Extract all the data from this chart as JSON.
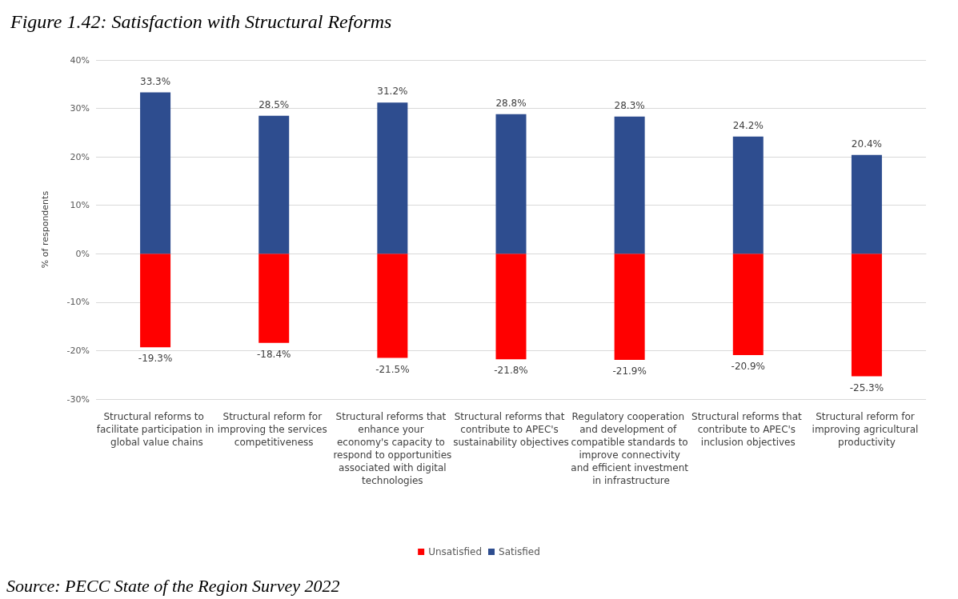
{
  "chart_data": {
    "type": "bar",
    "title": "Figure 1.42: Satisfaction with Structural Reforms",
    "ylabel": "% of respondents",
    "categories": [
      "Structural reforms to facilitate participation in global value chains",
      "Structural reform for improving the services competitiveness",
      "Structural reforms that enhance your economy's capacity to respond to opportunities associated with digital technologies",
      "Structural reforms that contribute to APEC's sustainability objectives",
      "Regulatory cooperation and development of compatible standards to improve connectivity and efficient investment in infrastructure",
      "Structural reforms that contribute to APEC's inclusion objectives",
      "Structural reform for improving agricultural productivity"
    ],
    "series": [
      {
        "name": "Unsatisfied",
        "color": "#ff0000",
        "values": [
          -19.3,
          -18.4,
          -21.5,
          -21.8,
          -21.9,
          -20.9,
          -25.3
        ],
        "value_labels": [
          "-19.3%",
          "-18.4%",
          "-21.5%",
          "-21.8%",
          "-21.9%",
          "-20.9%",
          "-25.3%"
        ]
      },
      {
        "name": "Satisfied",
        "color": "#2e4d8f",
        "values": [
          33.3,
          28.5,
          31.2,
          28.8,
          28.3,
          24.2,
          20.4
        ],
        "value_labels": [
          "33.3%",
          "28.5%",
          "31.2%",
          "28.8%",
          "28.3%",
          "24.2%",
          "20.4%"
        ]
      }
    ],
    "stacked": true,
    "ylim": [
      -30,
      40
    ],
    "yticks": [
      {
        "value": -30,
        "label": "-30%"
      },
      {
        "value": -20,
        "label": "-20%"
      },
      {
        "value": -10,
        "label": "-10%"
      },
      {
        "value": 0,
        "label": "0%"
      },
      {
        "value": 10,
        "label": "10%"
      },
      {
        "value": 20,
        "label": "20%"
      },
      {
        "value": 30,
        "label": "30%"
      },
      {
        "value": 40,
        "label": "40%"
      }
    ],
    "grid": "y",
    "legend": "bottom",
    "annotations": [
      "Source: PECC State of the Region Survey 2022"
    ]
  }
}
